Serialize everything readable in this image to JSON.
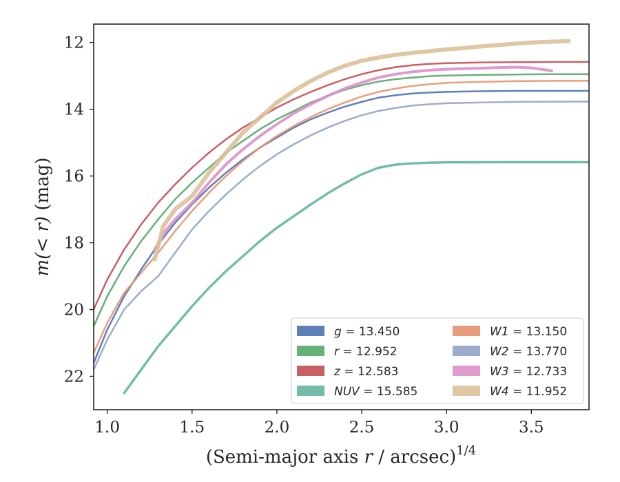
{
  "chart_data": {
    "type": "line",
    "xlabel": "(Semi-major axis r / arcsec)",
    "xlabel_parts": {
      "pre": "(Semi-major axis ",
      "var": "r",
      "post": " / arcsec)",
      "sup": "1/4"
    },
    "ylabel_parts": {
      "pre": "m",
      "inner": "(< r)",
      "post": " (mag)"
    },
    "xlim": [
      0.92,
      3.84
    ],
    "ylim": [
      23.0,
      11.45
    ],
    "y_inverted": true,
    "xticks": [
      1.0,
      1.5,
      2.0,
      2.5,
      3.0,
      3.5
    ],
    "xtick_labels": [
      "1.0",
      "1.5",
      "2.0",
      "2.5",
      "3.0",
      "3.5"
    ],
    "yticks": [
      12,
      14,
      16,
      18,
      20,
      22
    ],
    "ytick_labels": [
      "12",
      "14",
      "16",
      "18",
      "20",
      "22"
    ],
    "grid": false,
    "legend_position": "lower-right",
    "legend_columns": 2,
    "series": [
      {
        "name": "g = 13.450",
        "label_var": "g",
        "label_val": "= 13.450",
        "color": "#4c72b0",
        "width": 2.5,
        "x": [
          0.92,
          1.0,
          1.1,
          1.2,
          1.3,
          1.4,
          1.5,
          1.6,
          1.7,
          1.8,
          1.9,
          2.0,
          2.1,
          2.2,
          2.3,
          2.4,
          2.5,
          2.6,
          2.7,
          2.8,
          2.9,
          3.0,
          3.2,
          3.4,
          3.6,
          3.84
        ],
        "y": [
          21.6,
          20.6,
          19.6,
          18.8,
          18.05,
          17.4,
          16.85,
          16.35,
          15.9,
          15.5,
          15.15,
          14.85,
          14.55,
          14.3,
          14.1,
          13.92,
          13.78,
          13.65,
          13.58,
          13.53,
          13.5,
          13.48,
          13.46,
          13.45,
          13.45,
          13.45
        ]
      },
      {
        "name": "r = 12.952",
        "label_var": "r",
        "label_val": "= 12.952",
        "color": "#55a868",
        "width": 2.5,
        "x": [
          0.92,
          1.0,
          1.1,
          1.2,
          1.3,
          1.4,
          1.5,
          1.6,
          1.7,
          1.8,
          1.9,
          2.0,
          2.1,
          2.2,
          2.3,
          2.4,
          2.5,
          2.6,
          2.7,
          2.8,
          2.9,
          3.0,
          3.2,
          3.4,
          3.6,
          3.84
        ],
        "y": [
          20.5,
          19.6,
          18.7,
          17.95,
          17.3,
          16.7,
          16.2,
          15.75,
          15.3,
          14.95,
          14.6,
          14.3,
          14.05,
          13.8,
          13.6,
          13.42,
          13.28,
          13.17,
          13.1,
          13.05,
          13.01,
          12.99,
          12.97,
          12.96,
          12.95,
          12.95
        ]
      },
      {
        "name": "z = 12.583",
        "label_var": "z",
        "label_val": "= 12.583",
        "color": "#c44e52",
        "width": 2.5,
        "x": [
          0.92,
          1.0,
          1.1,
          1.2,
          1.3,
          1.4,
          1.5,
          1.6,
          1.7,
          1.8,
          1.9,
          2.0,
          2.1,
          2.2,
          2.3,
          2.4,
          2.5,
          2.6,
          2.7,
          2.8,
          2.9,
          3.0,
          3.2,
          3.4,
          3.6,
          3.84
        ],
        "y": [
          20.0,
          19.1,
          18.2,
          17.45,
          16.8,
          16.25,
          15.75,
          15.3,
          14.9,
          14.55,
          14.25,
          13.95,
          13.7,
          13.48,
          13.28,
          13.1,
          12.95,
          12.83,
          12.74,
          12.68,
          12.64,
          12.62,
          12.6,
          12.59,
          12.585,
          12.583
        ]
      },
      {
        "name": "NUV = 15.585",
        "label_var": "NUV",
        "label_val": "= 15.585",
        "color": "#64b5a0",
        "width": 3.5,
        "x": [
          1.1,
          1.2,
          1.3,
          1.4,
          1.5,
          1.6,
          1.7,
          1.8,
          1.9,
          2.0,
          2.1,
          2.2,
          2.3,
          2.4,
          2.5,
          2.6,
          2.7,
          2.8,
          2.9,
          3.0,
          3.2,
          3.4,
          3.6,
          3.84
        ],
        "y": [
          22.5,
          21.8,
          21.1,
          20.5,
          19.9,
          19.35,
          18.85,
          18.4,
          17.95,
          17.55,
          17.2,
          16.85,
          16.52,
          16.22,
          15.95,
          15.75,
          15.66,
          15.62,
          15.6,
          15.59,
          15.588,
          15.586,
          15.585,
          15.585
        ]
      },
      {
        "name": "W1 = 13.150",
        "label_var": "W1",
        "label_val": "= 13.150",
        "color": "#e8926b",
        "width": 2.5,
        "x": [
          0.92,
          1.0,
          1.1,
          1.2,
          1.3,
          1.4,
          1.5,
          1.6,
          1.7,
          1.8,
          1.9,
          2.0,
          2.1,
          2.2,
          2.3,
          2.4,
          2.5,
          2.6,
          2.7,
          2.8,
          2.9,
          3.0,
          3.2,
          3.4,
          3.6,
          3.84
        ],
        "y": [
          21.3,
          20.4,
          19.5,
          18.9,
          18.3,
          17.65,
          17.05,
          16.5,
          16.0,
          15.55,
          15.15,
          14.8,
          14.5,
          14.23,
          14.0,
          13.8,
          13.62,
          13.48,
          13.38,
          13.3,
          13.25,
          13.21,
          13.18,
          13.16,
          13.15,
          13.15
        ]
      },
      {
        "name": "W2 = 13.770",
        "label_var": "W2",
        "label_val": "= 13.770",
        "color": "#91a3c8",
        "width": 2.5,
        "x": [
          0.92,
          1.0,
          1.1,
          1.2,
          1.3,
          1.4,
          1.5,
          1.6,
          1.7,
          1.8,
          1.9,
          2.0,
          2.1,
          2.2,
          2.3,
          2.4,
          2.5,
          2.6,
          2.7,
          2.8,
          2.9,
          3.0,
          3.2,
          3.4,
          3.6,
          3.84
        ],
        "y": [
          21.8,
          20.9,
          20.0,
          19.45,
          19.0,
          18.3,
          17.6,
          17.05,
          16.55,
          16.1,
          15.7,
          15.35,
          15.05,
          14.78,
          14.55,
          14.35,
          14.18,
          14.05,
          13.96,
          13.89,
          13.85,
          13.82,
          13.8,
          13.78,
          13.775,
          13.77
        ]
      },
      {
        "name": "W3 = 12.733",
        "label_var": "W3",
        "label_val": "= 12.733",
        "color": "#dd8fc5",
        "width": 4,
        "x": [
          1.28,
          1.35,
          1.4,
          1.5,
          1.6,
          1.7,
          1.8,
          1.9,
          2.0,
          2.1,
          2.2,
          2.3,
          2.4,
          2.5,
          2.6,
          2.7,
          2.8,
          2.9,
          3.0,
          3.2,
          3.4,
          3.5,
          3.62
        ],
        "y": [
          18.2,
          17.6,
          17.3,
          16.8,
          16.2,
          15.65,
          15.2,
          14.8,
          14.45,
          14.12,
          13.85,
          13.6,
          13.38,
          13.2,
          13.05,
          12.95,
          12.88,
          12.83,
          12.8,
          12.77,
          12.74,
          12.76,
          12.85
        ]
      },
      {
        "name": "W4 = 11.952",
        "label_var": "W4",
        "label_val": "= 11.952",
        "color": "#dcc09a",
        "width": 6,
        "x": [
          1.28,
          1.33,
          1.4,
          1.5,
          1.6,
          1.7,
          1.8,
          1.9,
          2.0,
          2.1,
          2.2,
          2.3,
          2.4,
          2.5,
          2.6,
          2.7,
          2.8,
          2.9,
          3.0,
          3.1,
          3.2,
          3.3,
          3.4,
          3.5,
          3.6,
          3.72
        ],
        "y": [
          18.5,
          17.5,
          17.0,
          16.6,
          15.9,
          15.3,
          14.7,
          14.25,
          13.8,
          13.45,
          13.15,
          12.9,
          12.7,
          12.55,
          12.45,
          12.37,
          12.31,
          12.26,
          12.21,
          12.17,
          12.12,
          12.08,
          12.04,
          12.0,
          11.98,
          11.96
        ]
      }
    ]
  }
}
